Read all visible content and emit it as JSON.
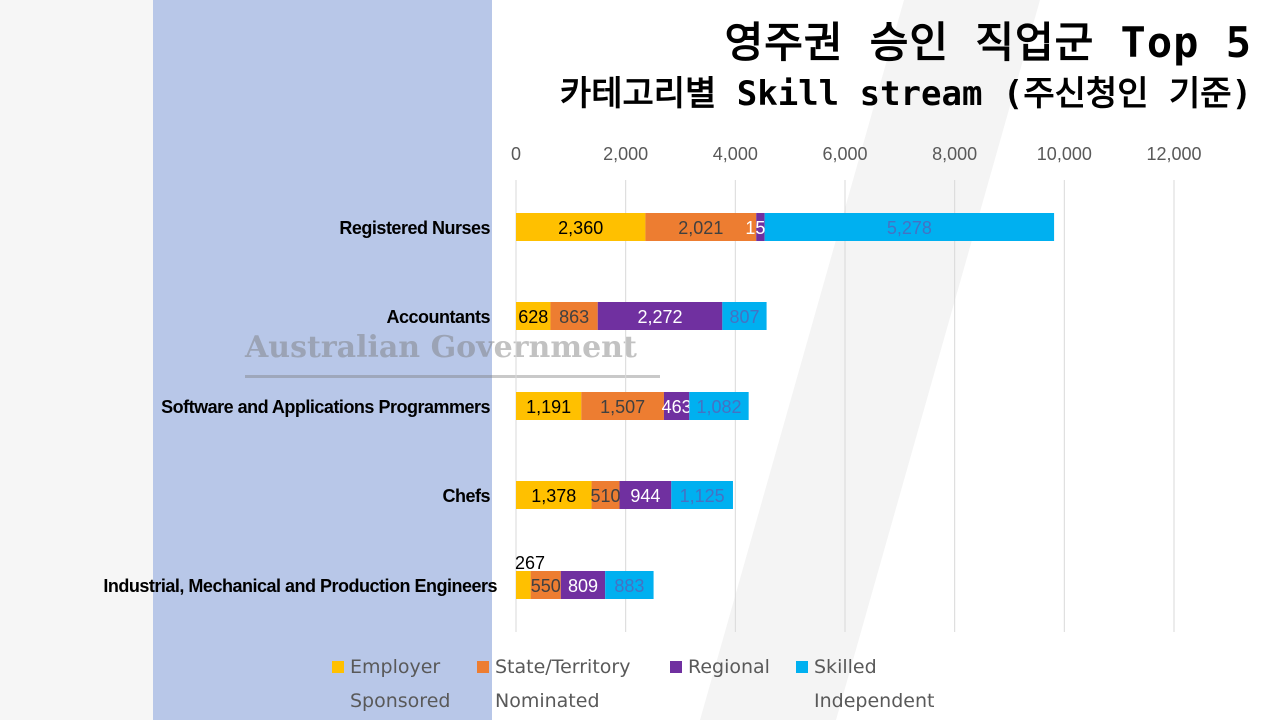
{
  "title": "영주권 승인 직업군 Top 5",
  "subtitle": "카테고리별 Skill stream (주신청인 기준)",
  "watermark": "Australian Government Department of Home Affairs",
  "chart_data": {
    "type": "bar",
    "orientation": "horizontal-stacked",
    "categories": [
      "Registered Nurses",
      "Accountants",
      "Software and Applications Programmers",
      "Chefs",
      "Industrial, Mechanical and Production Engineers"
    ],
    "series": [
      {
        "name": "Employer Sponsored",
        "label_lines": [
          "Employer",
          "Sponsored"
        ],
        "color": "#ffc000",
        "label_color": "#000000",
        "values": [
          2360,
          628,
          1191,
          1378,
          267
        ]
      },
      {
        "name": "State/Territory Nominated",
        "label_lines": [
          "State/Territory",
          "Nominated"
        ],
        "color": "#ed7d31",
        "label_color": "#404040",
        "values": [
          2021,
          863,
          1507,
          510,
          550
        ]
      },
      {
        "name": "Regional",
        "label_lines": [
          "Regional",
          ""
        ],
        "color": "#7030a0",
        "label_color": "#ffffff",
        "values": [
          154,
          2272,
          463,
          944,
          809
        ]
      },
      {
        "name": "Skilled Independent",
        "label_lines": [
          "Skilled",
          "Independent"
        ],
        "color": "#00b0f0",
        "label_color": "#4472c4",
        "values": [
          5278,
          807,
          1082,
          1125,
          883
        ]
      }
    ],
    "xlim": [
      0,
      12000
    ],
    "xticks": [
      0,
      2000,
      4000,
      6000,
      8000,
      10000,
      12000
    ],
    "xtick_labels": [
      "0",
      "2,000",
      "4,000",
      "6,000",
      "8,000",
      "10,000",
      "12,000"
    ],
    "grid": true,
    "legend": "bottom"
  }
}
